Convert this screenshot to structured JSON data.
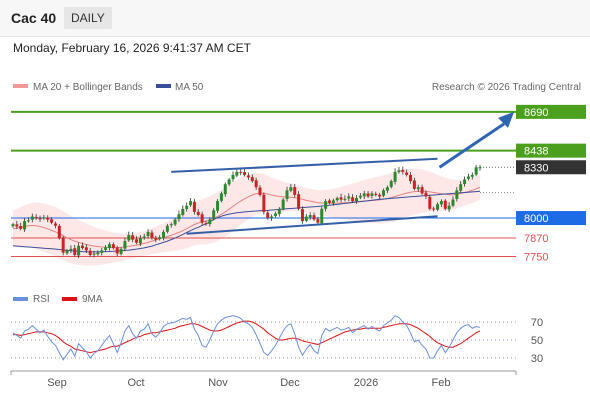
{
  "header": {
    "ticker": "Cac 40",
    "period": "DAILY",
    "timestamp": "Monday, February 16, 2026 9:41:37 AM CET"
  },
  "legend": {
    "bollinger_label": "MA 20 + Bollinger Bands",
    "ma50_label": "MA 50",
    "credit": "Research © 2026 Trading Central"
  },
  "colors": {
    "resistance": "#4aa01c",
    "pivot": "#1e6be6",
    "support": "#e05050",
    "current": "#333333",
    "trendline": "#3560a8",
    "bollinger_fill": "#fde3e3",
    "ma20": "#e88080",
    "ma50": "#3a4f9a",
    "candle_up": "#2a8a2a",
    "candle_down": "#cc2222",
    "rsi": "#6a8fe0",
    "rsi_ma": "#dd1111",
    "arrow": "#2f66b3"
  },
  "chart_data": [
    {
      "type": "candlestick",
      "x_axis_labels": [
        "Sep",
        "Oct",
        "Nov",
        "Dec",
        "2026",
        "Feb"
      ],
      "levels": {
        "resistance": [
          8690,
          8438
        ],
        "current": 8330,
        "pivot": 8000,
        "support": [
          7870,
          7750
        ]
      },
      "level_labels": [
        "8690",
        "8438",
        "8330",
        "8000",
        "7870",
        "7750"
      ],
      "price_range": [
        7630,
        8780
      ],
      "close_series": [
        7960,
        7945,
        7930,
        7980,
        7985,
        8010,
        7998,
        7992,
        8005,
        7990,
        7970,
        7950,
        7870,
        7775,
        7790,
        7800,
        7760,
        7820,
        7805,
        7790,
        7760,
        7770,
        7775,
        7790,
        7810,
        7830,
        7805,
        7770,
        7800,
        7850,
        7890,
        7860,
        7840,
        7870,
        7880,
        7910,
        7870,
        7860,
        7875,
        7910,
        7950,
        7960,
        7990,
        8025,
        8060,
        8080,
        8110,
        8040,
        8020,
        7970,
        7960,
        7990,
        8050,
        8110,
        8160,
        8220,
        8250,
        8280,
        8300,
        8295,
        8280,
        8265,
        8240,
        8200,
        8150,
        8040,
        8000,
        8010,
        8030,
        8060,
        8120,
        8180,
        8200,
        8150,
        8060,
        7980,
        8010,
        8020,
        7990,
        7970,
        8060,
        8110,
        8100,
        8115,
        8130,
        8120,
        8125,
        8140,
        8110,
        8130,
        8145,
        8160,
        8140,
        8160,
        8150,
        8140,
        8180,
        8200,
        8240,
        8300,
        8310,
        8300,
        8280,
        8240,
        8190,
        8200,
        8160,
        8140,
        8060,
        8060,
        8090,
        8110,
        8060,
        8080,
        8120,
        8180,
        8220,
        8250,
        8270,
        8280,
        8330,
        8330
      ],
      "ma50_series": [
        7820,
        7818,
        7816,
        7814,
        7812,
        7810,
        7808,
        7806,
        7804,
        7802,
        7800,
        7798,
        7796,
        7793,
        7790,
        7788,
        7786,
        7784,
        7782,
        7781,
        7780,
        7780,
        7780,
        7781,
        7782,
        7783,
        7784,
        7786,
        7788,
        7790,
        7792,
        7795,
        7798,
        7802,
        7806,
        7812,
        7818,
        7826,
        7834,
        7842,
        7850,
        7860,
        7870,
        7882,
        7894,
        7906,
        7918,
        7930,
        7940,
        7952,
        7962,
        7975,
        7990,
        8002,
        8012,
        8020,
        8026,
        8030,
        8034,
        8037,
        8040,
        8042,
        8044,
        8046,
        8048,
        8049,
        8050,
        8052,
        8054,
        8056,
        8058,
        8060,
        8062,
        8064,
        8066,
        8068,
        8070,
        8072,
        8074,
        8076,
        8078,
        8080,
        8083,
        8086,
        8089,
        8092,
        8095,
        8098,
        8101,
        8104,
        8107,
        8110,
        8113,
        8116,
        8119,
        8122,
        8124,
        8126,
        8128,
        8130,
        8132,
        8134,
        8136,
        8138,
        8140,
        8142,
        8144,
        8146,
        8148,
        8150,
        8152,
        8154,
        8156,
        8158,
        8160,
        8162,
        8164,
        8166,
        8168,
        8170,
        8172,
        8174
      ],
      "ma20_series": [
        7930,
        7935,
        7940,
        7945,
        7950,
        7952,
        7950,
        7945,
        7938,
        7930,
        7920,
        7910,
        7898,
        7885,
        7872,
        7860,
        7850,
        7842,
        7835,
        7828,
        7822,
        7818,
        7815,
        7812,
        7810,
        7809,
        7808,
        7808,
        7809,
        7812,
        7816,
        7820,
        7825,
        7830,
        7835,
        7842,
        7850,
        7858,
        7865,
        7872,
        7880,
        7888,
        7897,
        7907,
        7918,
        7930,
        7945,
        7958,
        7968,
        7975,
        7980,
        7988,
        7998,
        8010,
        8025,
        8040,
        8058,
        8076,
        8094,
        8110,
        8125,
        8138,
        8150,
        8158,
        8162,
        8160,
        8156,
        8150,
        8145,
        8140,
        8138,
        8136,
        8135,
        8132,
        8128,
        8122,
        8115,
        8110,
        8105,
        8100,
        8098,
        8097,
        8096,
        8096,
        8097,
        8098,
        8100,
        8102,
        8104,
        8106,
        8108,
        8110,
        8112,
        8114,
        8116,
        8118,
        8122,
        8127,
        8133,
        8140,
        8148,
        8155,
        8162,
        8168,
        8172,
        8174,
        8175,
        8174,
        8170,
        8166,
        8162,
        8158,
        8155,
        8152,
        8152,
        8155,
        8160,
        8166,
        8172,
        8180,
        8190,
        8200
      ],
      "bollinger_width": 160,
      "trendlines": [
        {
          "name": "upper-channel",
          "from": [
            41,
            8300
          ],
          "to": [
            110,
            8385
          ]
        },
        {
          "name": "lower-channel",
          "from": [
            45,
            7898
          ],
          "to": [
            110,
            8012
          ]
        }
      ],
      "projection": {
        "from": [
          110,
          8330
        ],
        "to": [
          117,
          8690
        ]
      }
    },
    {
      "type": "line",
      "legend": [
        "RSI",
        "9MA"
      ],
      "y_ticks": [
        70,
        50,
        30
      ],
      "ylim": [
        20,
        80
      ],
      "reference_lines": [
        70,
        50,
        30
      ],
      "series": [
        {
          "name": "RSI",
          "values": [
            58,
            55,
            52,
            60,
            62,
            66,
            62,
            58,
            61,
            54,
            48,
            44,
            36,
            28,
            34,
            40,
            32,
            46,
            41,
            37,
            30,
            35,
            38,
            44,
            50,
            55,
            46,
            36,
            47,
            60,
            66,
            57,
            52,
            60,
            62,
            68,
            57,
            53,
            58,
            65,
            68,
            69,
            70,
            72,
            74,
            73,
            75,
            62,
            55,
            44,
            42,
            50,
            60,
            68,
            72,
            75,
            76,
            77,
            76,
            74,
            70,
            68,
            64,
            56,
            46,
            36,
            33,
            38,
            44,
            52,
            60,
            66,
            68,
            57,
            42,
            33,
            40,
            45,
            38,
            35,
            55,
            63,
            60,
            62,
            64,
            61,
            62,
            64,
            58,
            62,
            64,
            66,
            62,
            65,
            62,
            60,
            66,
            69,
            72,
            77,
            75,
            70,
            66,
            58,
            48,
            50,
            44,
            40,
            30,
            30,
            38,
            44,
            36,
            42,
            50,
            58,
            63,
            66,
            67,
            63,
            65,
            64
          ]
        },
        {
          "name": "9MA",
          "values": [
            56,
            56,
            55,
            56,
            57,
            58,
            59,
            59,
            59,
            58,
            57,
            55,
            52,
            48,
            45,
            43,
            40,
            39,
            38,
            37,
            36,
            37,
            38,
            39,
            40,
            42,
            43,
            43,
            45,
            47,
            49,
            51,
            53,
            54,
            56,
            57,
            58,
            58,
            59,
            60,
            61,
            62,
            63,
            65,
            66,
            67,
            68,
            68,
            67,
            65,
            63,
            61,
            60,
            60,
            61,
            63,
            65,
            67,
            69,
            70,
            71,
            71,
            70,
            68,
            65,
            62,
            58,
            55,
            52,
            50,
            50,
            51,
            52,
            52,
            51,
            49,
            48,
            47,
            46,
            45,
            47,
            49,
            51,
            53,
            55,
            57,
            59,
            60,
            61,
            62,
            62,
            63,
            63,
            63,
            63,
            63,
            64,
            65,
            66,
            67,
            68,
            68,
            68,
            67,
            65,
            63,
            60,
            57,
            54,
            50,
            47,
            45,
            43,
            42,
            42,
            44,
            46,
            49,
            52,
            55,
            58,
            60
          ]
        }
      ]
    }
  ]
}
